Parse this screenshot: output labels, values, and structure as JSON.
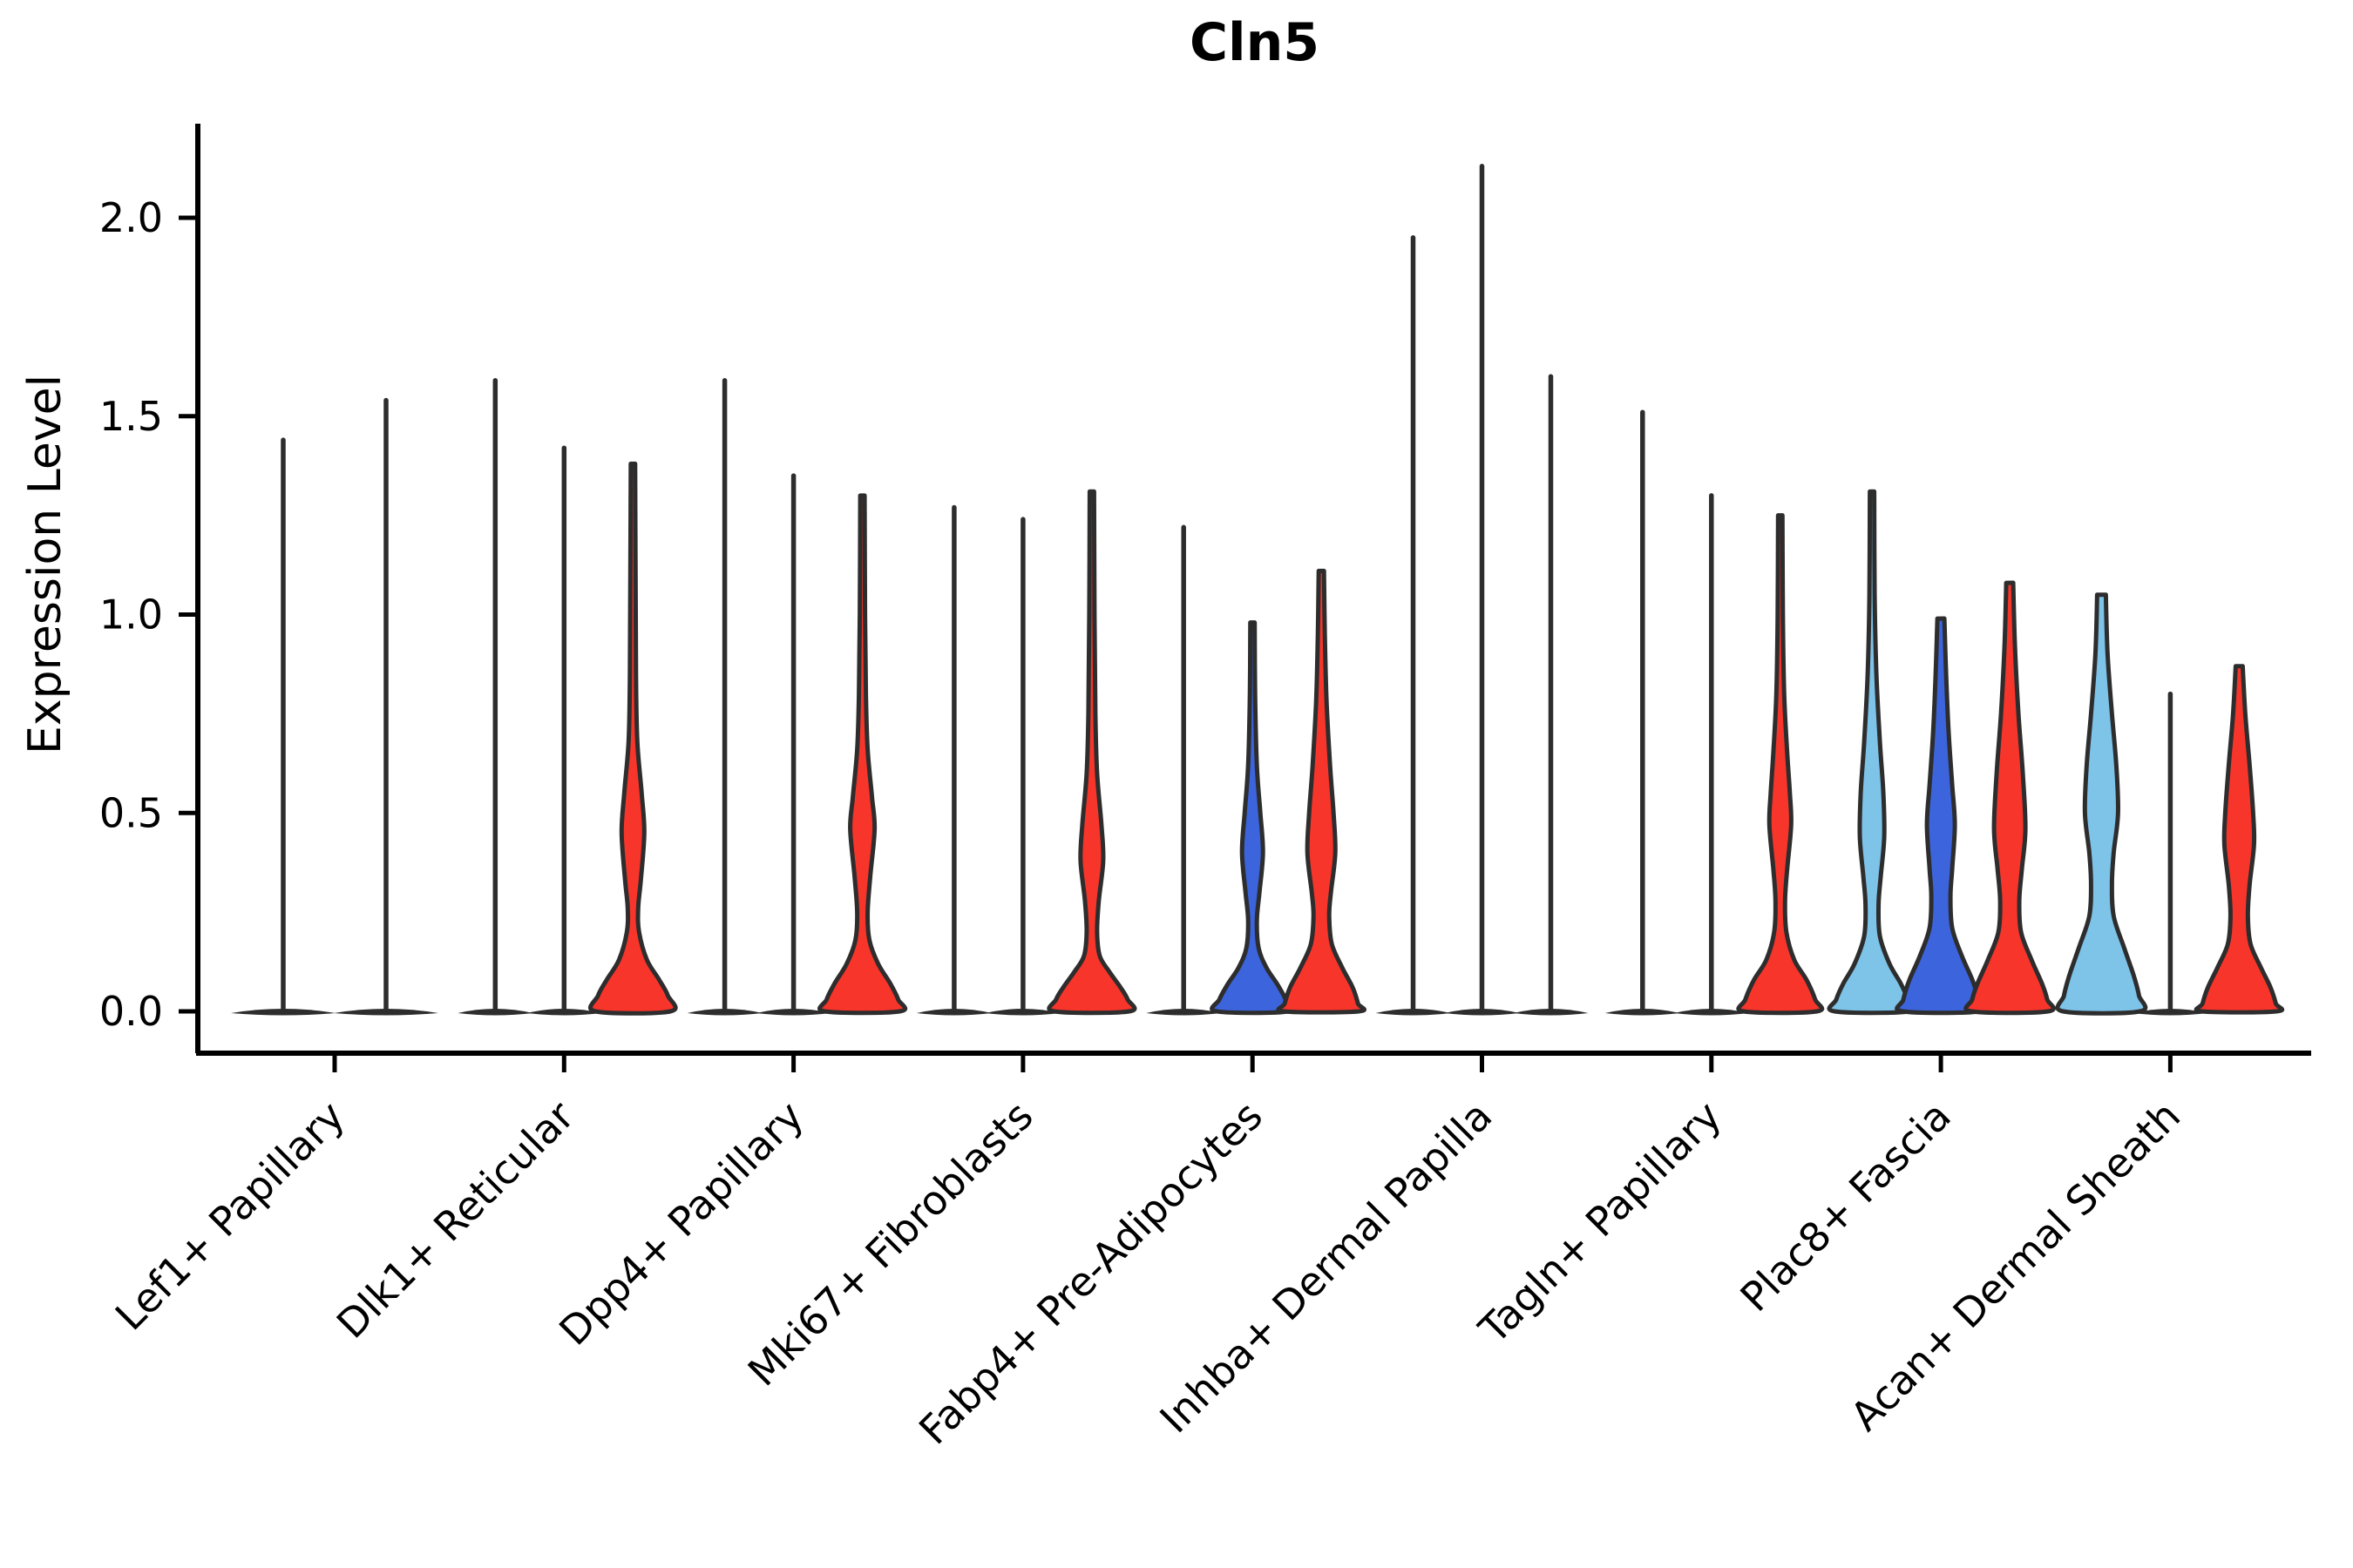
{
  "title": "Cln5",
  "y_axis_label": "Expression Level",
  "chart_data": {
    "type": "violin",
    "title": "Cln5",
    "xlabel": "",
    "ylabel": "Expression Level",
    "ylim": [
      -0.1,
      2.24
    ],
    "yticks": [
      "0.0",
      "0.5",
      "1.0",
      "1.5",
      "2.0"
    ],
    "ytick_values": [
      0.0,
      0.5,
      1.0,
      1.5,
      2.0
    ],
    "grid": false,
    "legend": "none",
    "split_position_colors": [
      "#7ec3e8",
      "#3c64dc",
      "#f8352b"
    ],
    "outline_color": "#2d2d2d",
    "categories": [
      "Lef1+ Papillary",
      "Dlk1+ Reticular",
      "Dpp4+ Papillary",
      "Mki67+ Fibroblasts",
      "Fabp4+ Pre-Adipocytes",
      "Inhba+ Dermal Papilla",
      "Tagln+ Papillary",
      "Plac8+ Fascia",
      "Acan+ Dermal Sheath"
    ],
    "groups": [
      {
        "category": "Lef1+ Papillary",
        "violins": [
          {
            "style": "spike",
            "max": 1.44,
            "base_hw": 60
          },
          {
            "style": "spike",
            "max": 1.54,
            "base_hw": 60
          }
        ]
      },
      {
        "category": "Dlk1+ Reticular",
        "violins": [
          {
            "style": "spike",
            "max": 1.59,
            "base_hw": 43
          },
          {
            "style": "spike",
            "max": 1.42,
            "base_hw": 43
          },
          {
            "style": "violin",
            "max": 1.38,
            "fill": "#f8352b",
            "profile": [
              [
                1.38,
                2.5
              ],
              [
                1.1,
                3
              ],
              [
                0.85,
                3.5
              ],
              [
                0.68,
                5
              ],
              [
                0.55,
                10
              ],
              [
                0.45,
                13
              ],
              [
                0.33,
                9
              ],
              [
                0.26,
                6
              ],
              [
                0.2,
                7
              ],
              [
                0.13,
                16
              ],
              [
                0.08,
                30
              ],
              [
                0.04,
                40
              ],
              [
                0.0,
                43
              ]
            ]
          }
        ]
      },
      {
        "category": "Dpp4+ Papillary",
        "violins": [
          {
            "style": "spike",
            "max": 1.59,
            "base_hw": 43
          },
          {
            "style": "spike",
            "max": 1.35,
            "base_hw": 43
          },
          {
            "style": "violin",
            "max": 1.3,
            "fill": "#f8352b",
            "profile": [
              [
                1.3,
                2.5
              ],
              [
                1.0,
                3
              ],
              [
                0.8,
                4
              ],
              [
                0.66,
                6
              ],
              [
                0.54,
                11
              ],
              [
                0.46,
                14
              ],
              [
                0.34,
                9
              ],
              [
                0.25,
                6
              ],
              [
                0.18,
                8
              ],
              [
                0.12,
                18
              ],
              [
                0.07,
                32
              ],
              [
                0.03,
                41
              ],
              [
                0.0,
                43
              ]
            ]
          }
        ]
      },
      {
        "category": "Mki67+ Fibroblasts",
        "violins": [
          {
            "style": "spike",
            "max": 1.27,
            "base_hw": 43
          },
          {
            "style": "spike",
            "max": 1.24,
            "base_hw": 43
          },
          {
            "style": "violin",
            "max": 1.31,
            "fill": "#f8352b",
            "profile": [
              [
                1.31,
                2.5
              ],
              [
                1.0,
                3
              ],
              [
                0.75,
                4
              ],
              [
                0.6,
                6
              ],
              [
                0.47,
                11
              ],
              [
                0.38,
                13
              ],
              [
                0.28,
                8
              ],
              [
                0.2,
                6
              ],
              [
                0.14,
                9
              ],
              [
                0.1,
                20
              ],
              [
                0.06,
                33
              ],
              [
                0.03,
                41
              ],
              [
                0.0,
                43
              ]
            ]
          }
        ]
      },
      {
        "category": "Fabp4+ Pre-Adipocytes",
        "violins": [
          {
            "style": "spike",
            "max": 1.22,
            "base_hw": 43
          },
          {
            "style": "violin",
            "max": 0.98,
            "fill": "#3c64dc",
            "profile": [
              [
                0.98,
                2.5
              ],
              [
                0.8,
                3
              ],
              [
                0.62,
                5
              ],
              [
                0.5,
                9
              ],
              [
                0.4,
                12
              ],
              [
                0.3,
                8
              ],
              [
                0.23,
                5
              ],
              [
                0.16,
                7
              ],
              [
                0.11,
                16
              ],
              [
                0.07,
                28
              ],
              [
                0.03,
                38
              ],
              [
                0.0,
                41
              ]
            ]
          },
          {
            "style": "violin",
            "max": 1.11,
            "fill": "#f8352b",
            "profile": [
              [
                1.11,
                3
              ],
              [
                0.95,
                4
              ],
              [
                0.78,
                6
              ],
              [
                0.62,
                10
              ],
              [
                0.5,
                14
              ],
              [
                0.4,
                16
              ],
              [
                0.3,
                11
              ],
              [
                0.24,
                9
              ],
              [
                0.17,
                12
              ],
              [
                0.11,
                24
              ],
              [
                0.06,
                36
              ],
              [
                0.02,
                42
              ],
              [
                0.0,
                43
              ]
            ]
          }
        ]
      },
      {
        "category": "Inhba+ Dermal Papilla",
        "violins": [
          {
            "style": "spike",
            "max": 1.95,
            "base_hw": 43
          },
          {
            "style": "spike",
            "max": 2.13,
            "base_hw": 43
          },
          {
            "style": "spike",
            "max": 1.6,
            "base_hw": 43
          }
        ]
      },
      {
        "category": "Tagln+ Papillary",
        "violins": [
          {
            "style": "spike",
            "max": 1.51,
            "base_hw": 43
          },
          {
            "style": "spike",
            "max": 1.3,
            "base_hw": 43
          },
          {
            "style": "violin",
            "max": 1.25,
            "fill": "#f8352b",
            "profile": [
              [
                1.25,
                2.5
              ],
              [
                1.0,
                3
              ],
              [
                0.8,
                4.5
              ],
              [
                0.65,
                8
              ],
              [
                0.55,
                11
              ],
              [
                0.47,
                12.5
              ],
              [
                0.36,
                8
              ],
              [
                0.28,
                5.5
              ],
              [
                0.2,
                7
              ],
              [
                0.13,
                16
              ],
              [
                0.08,
                30
              ],
              [
                0.03,
                40
              ],
              [
                0.0,
                42
              ]
            ]
          }
        ]
      },
      {
        "category": "Plac8+ Fascia",
        "violins": [
          {
            "style": "violin",
            "max": 1.31,
            "fill": "#7ec3e8",
            "profile": [
              [
                1.31,
                2.5
              ],
              [
                1.05,
                3
              ],
              [
                0.85,
                5
              ],
              [
                0.68,
                9
              ],
              [
                0.55,
                13
              ],
              [
                0.44,
                14
              ],
              [
                0.34,
                10
              ],
              [
                0.27,
                7.5
              ],
              [
                0.19,
                9
              ],
              [
                0.12,
                20
              ],
              [
                0.07,
                33
              ],
              [
                0.03,
                41
              ],
              [
                0.0,
                43
              ]
            ]
          },
          {
            "style": "violin",
            "max": 0.99,
            "fill": "#3c64dc",
            "profile": [
              [
                0.99,
                4
              ],
              [
                0.85,
                6
              ],
              [
                0.7,
                9
              ],
              [
                0.57,
                13
              ],
              [
                0.47,
                16
              ],
              [
                0.36,
                13
              ],
              [
                0.29,
                11
              ],
              [
                0.21,
                13
              ],
              [
                0.14,
                24
              ],
              [
                0.08,
                36
              ],
              [
                0.03,
                43
              ],
              [
                0.0,
                44
              ]
            ]
          },
          {
            "style": "violin",
            "max": 1.08,
            "fill": "#f8352b",
            "profile": [
              [
                1.08,
                4
              ],
              [
                0.92,
                6
              ],
              [
                0.75,
                10
              ],
              [
                0.6,
                15
              ],
              [
                0.46,
                18
              ],
              [
                0.36,
                14
              ],
              [
                0.28,
                11
              ],
              [
                0.2,
                13
              ],
              [
                0.13,
                25
              ],
              [
                0.07,
                37
              ],
              [
                0.03,
                43
              ],
              [
                0.0,
                44
              ]
            ]
          }
        ]
      },
      {
        "category": "Acan+ Dermal Sheath",
        "violins": [
          {
            "style": "violin",
            "max": 1.05,
            "fill": "#7ec3e8",
            "profile": [
              [
                1.05,
                5
              ],
              [
                0.9,
                7
              ],
              [
                0.75,
                12
              ],
              [
                0.62,
                17
              ],
              [
                0.5,
                19
              ],
              [
                0.4,
                14
              ],
              [
                0.32,
                12
              ],
              [
                0.24,
                14
              ],
              [
                0.16,
                26
              ],
              [
                0.09,
                37
              ],
              [
                0.04,
                43
              ],
              [
                0.0,
                44
              ]
            ]
          },
          {
            "style": "spike",
            "max": 0.8,
            "base_hw": 43
          },
          {
            "style": "violin",
            "max": 0.87,
            "fill": "#f8352b",
            "profile": [
              [
                0.87,
                4
              ],
              [
                0.75,
                7
              ],
              [
                0.62,
                12
              ],
              [
                0.5,
                16
              ],
              [
                0.42,
                17
              ],
              [
                0.32,
                12
              ],
              [
                0.24,
                10
              ],
              [
                0.17,
                13
              ],
              [
                0.11,
                25
              ],
              [
                0.06,
                36
              ],
              [
                0.02,
                42
              ],
              [
                0.0,
                43
              ]
            ]
          }
        ]
      }
    ]
  }
}
